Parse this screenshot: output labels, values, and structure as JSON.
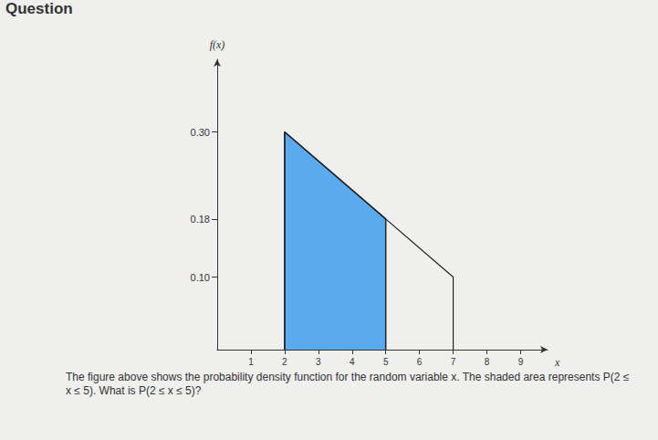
{
  "chart_data": {
    "type": "area",
    "title": "Question",
    "xlabel": "x",
    "ylabel": "f(x)",
    "x": [
      2,
      5,
      7
    ],
    "values": [
      0.3,
      0.18,
      0.1
    ],
    "shaded": [
      2,
      5
    ],
    "color": "#5aaaf0",
    "xlim": [
      0,
      9.8
    ],
    "ylim": [
      0,
      0.4
    ],
    "xticks": [
      1,
      2,
      3,
      4,
      5,
      6,
      7,
      8,
      9
    ],
    "yticks": [
      {
        "value": 0.1,
        "label": "0.10"
      },
      {
        "value": 0.18,
        "label": "0.18"
      },
      {
        "value": 0.3,
        "label": "0.30"
      }
    ],
    "grid": false,
    "caption": "The figure above shows the probability density function for the random variable x. The shaded area represents P(2 ≤ x ≤ 5). What is P(2 ≤ x ≤ 5)?"
  }
}
